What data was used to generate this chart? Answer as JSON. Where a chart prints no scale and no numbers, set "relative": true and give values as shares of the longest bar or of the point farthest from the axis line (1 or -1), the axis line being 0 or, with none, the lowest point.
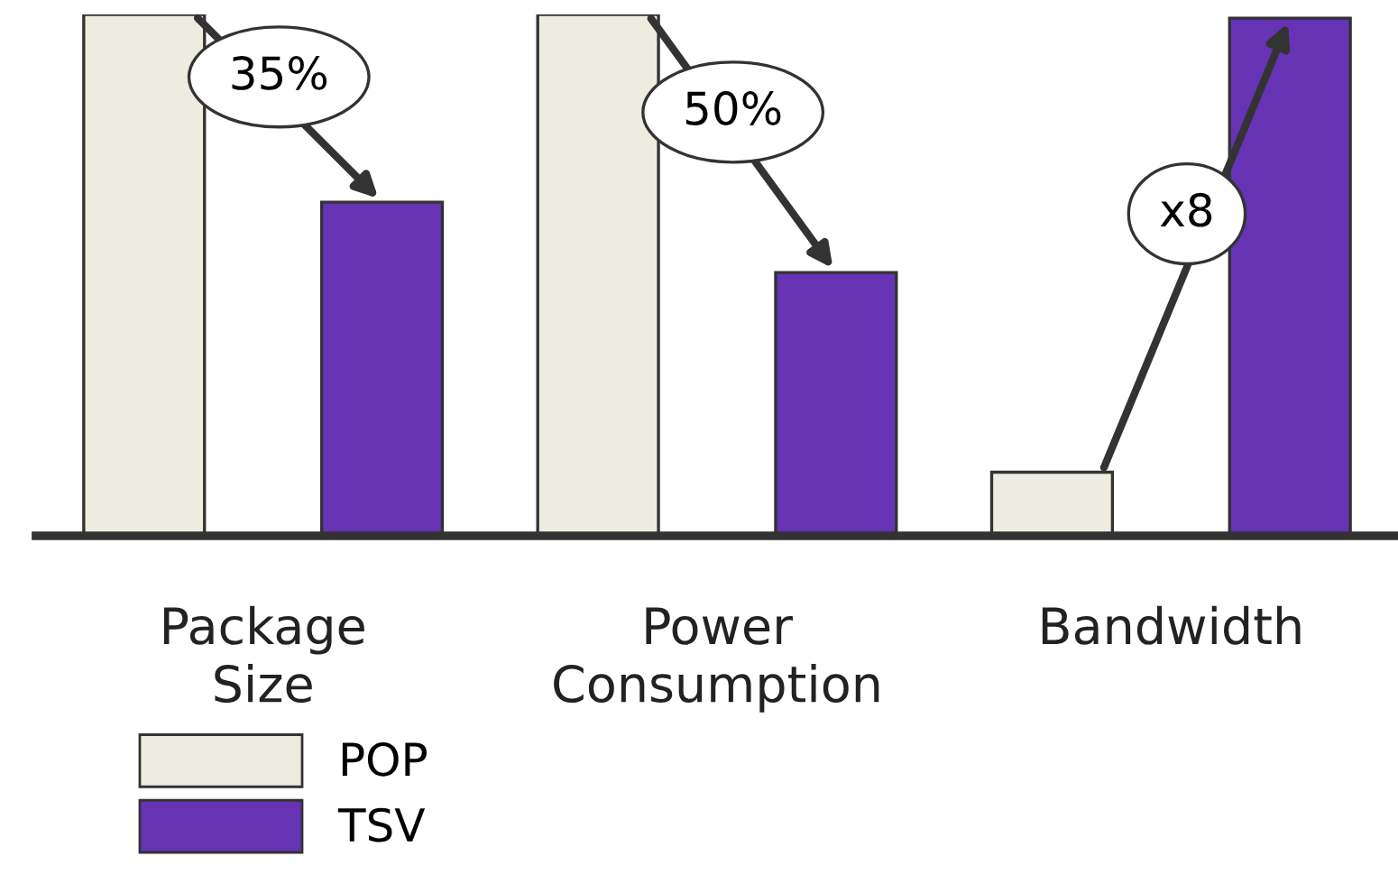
{
  "chart_data": {
    "type": "bar",
    "relative": true,
    "legend": "bottom left",
    "categories": [
      "Package\nSize",
      "Power\nConsumption",
      "Bandwidth"
    ],
    "annotations": [
      "35%",
      "50%",
      "x8"
    ],
    "series": [
      {
        "name": "POP",
        "color": "#eeebe0",
        "values": [
          1,
          1,
          0.122
        ]
      },
      {
        "name": "TSV",
        "color": "#6633b5",
        "values": [
          0.64,
          0.505,
          0.993
        ]
      }
    ]
  }
}
